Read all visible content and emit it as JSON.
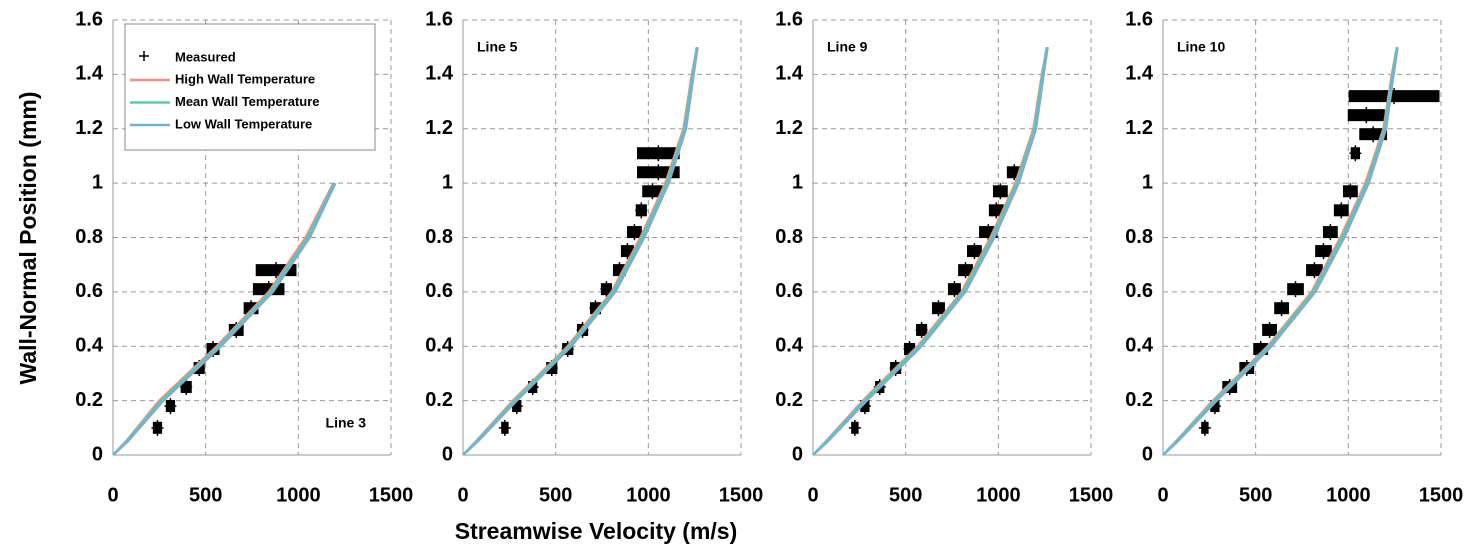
{
  "axis_titles": {
    "ylabel": "Wall-Normal Position (mm)",
    "xlabel": "Streamwise Velocity (m/s)"
  },
  "chart_data": [
    {
      "type": "line",
      "annotation": "Line 3",
      "annotation_corner": "bottom-right",
      "legend": "upper-left",
      "xlim": [
        0,
        1500
      ],
      "ylim": [
        0,
        1.6
      ],
      "xticks": [
        0,
        500,
        1000,
        1500
      ],
      "yticks": [
        0,
        0.2,
        0.4,
        0.6,
        0.8,
        1,
        1.2,
        1.4,
        1.6
      ],
      "grid": true,
      "measured": {
        "name": "Measured",
        "color": "#000000",
        "y": [
          0.1,
          0.18,
          0.25,
          0.32,
          0.39,
          0.46,
          0.54,
          0.61,
          0.68
        ],
        "x": [
          240,
          310,
          395,
          465,
          540,
          665,
          745,
          840,
          880
        ],
        "xerr": [
          25,
          25,
          30,
          30,
          35,
          40,
          40,
          85,
          110
        ]
      },
      "series": [
        {
          "name": "High Wall Temperature",
          "color": "#f08a84",
          "x": [
            0,
            70,
            250,
            560,
            840,
            1040,
            1190
          ],
          "y": [
            0,
            0.05,
            0.2,
            0.4,
            0.6,
            0.8,
            1
          ]
        },
        {
          "name": "Mean Wall Temperature",
          "color": "#5ccc9c",
          "x": [
            0,
            75,
            262,
            572,
            852,
            1052,
            1195
          ],
          "y": [
            0,
            0.05,
            0.2,
            0.4,
            0.6,
            0.8,
            1
          ]
        },
        {
          "name": "Low Wall Temperature",
          "color": "#6cb4dc",
          "x": [
            0,
            80,
            272,
            582,
            862,
            1062,
            1200
          ],
          "y": [
            0,
            0.05,
            0.2,
            0.4,
            0.6,
            0.8,
            1
          ]
        }
      ]
    },
    {
      "type": "line",
      "annotation": "Line 5",
      "annotation_corner": "top-left",
      "xlim": [
        0,
        1500
      ],
      "ylim": [
        0,
        1.6
      ],
      "xticks": [
        0,
        500,
        1000,
        1500
      ],
      "yticks": [
        0,
        0.2,
        0.4,
        0.6,
        0.8,
        1,
        1.2,
        1.4,
        1.6
      ],
      "grid": true,
      "measured": {
        "color": "#000000",
        "y": [
          0.1,
          0.18,
          0.25,
          0.32,
          0.39,
          0.46,
          0.54,
          0.61,
          0.68,
          0.75,
          0.82,
          0.9,
          0.97,
          1.04,
          1.11
        ],
        "x": [
          226,
          290,
          376,
          479,
          565,
          645,
          715,
          774,
          844,
          887,
          925,
          962,
          1022,
          1054,
          1054
        ],
        "xerr": [
          20,
          25,
          25,
          30,
          30,
          30,
          30,
          30,
          35,
          35,
          40,
          30,
          55,
          115,
          115
        ]
      },
      "series": [
        {
          "color": "#f08a84",
          "x": [
            0,
            70,
            270,
            565,
            802,
            958,
            1092,
            1190,
            1235,
            1262
          ],
          "y": [
            0,
            0.05,
            0.2,
            0.4,
            0.6,
            0.8,
            1,
            1.2,
            1.4,
            1.5
          ]
        },
        {
          "color": "#5ccc9c",
          "x": [
            0,
            75,
            280,
            575,
            812,
            968,
            1102,
            1197,
            1240,
            1264
          ],
          "y": [
            0,
            0.05,
            0.2,
            0.4,
            0.6,
            0.8,
            1,
            1.2,
            1.4,
            1.5
          ]
        },
        {
          "color": "#6cb4dc",
          "x": [
            0,
            80,
            290,
            585,
            822,
            978,
            1110,
            1203,
            1244,
            1266
          ],
          "y": [
            0,
            0.05,
            0.2,
            0.4,
            0.6,
            0.8,
            1,
            1.2,
            1.4,
            1.5
          ]
        }
      ]
    },
    {
      "type": "line",
      "annotation": "Line 9",
      "annotation_corner": "top-left",
      "xlim": [
        0,
        1500
      ],
      "ylim": [
        0,
        1.6
      ],
      "xticks": [
        0,
        500,
        1000,
        1500
      ],
      "yticks": [
        0,
        0.2,
        0.4,
        0.6,
        0.8,
        1,
        1.2,
        1.4,
        1.6
      ],
      "grid": true,
      "measured": {
        "color": "#000000",
        "y": [
          0.1,
          0.18,
          0.25,
          0.32,
          0.39,
          0.46,
          0.54,
          0.61,
          0.68,
          0.75,
          0.82,
          0.9,
          0.97,
          1.04
        ],
        "x": [
          226,
          280,
          360,
          446,
          521,
          586,
          677,
          763,
          823,
          871,
          946,
          989,
          1011,
          1086
        ],
        "xerr": [
          20,
          25,
          25,
          30,
          30,
          30,
          35,
          35,
          40,
          40,
          50,
          40,
          40,
          40
        ]
      },
      "series": [
        {
          "color": "#f08a84",
          "x": [
            0,
            70,
            270,
            565,
            802,
            958,
            1092,
            1190,
            1235,
            1262
          ],
          "y": [
            0,
            0.05,
            0.2,
            0.4,
            0.6,
            0.8,
            1,
            1.2,
            1.4,
            1.5
          ]
        },
        {
          "color": "#5ccc9c",
          "x": [
            0,
            75,
            280,
            575,
            812,
            968,
            1102,
            1197,
            1240,
            1264
          ],
          "y": [
            0,
            0.05,
            0.2,
            0.4,
            0.6,
            0.8,
            1,
            1.2,
            1.4,
            1.5
          ]
        },
        {
          "color": "#6cb4dc",
          "x": [
            0,
            80,
            290,
            585,
            822,
            978,
            1110,
            1203,
            1244,
            1266
          ],
          "y": [
            0,
            0.05,
            0.2,
            0.4,
            0.6,
            0.8,
            1,
            1.2,
            1.4,
            1.5
          ]
        }
      ]
    },
    {
      "type": "line",
      "annotation": "Line 10",
      "annotation_corner": "top-left",
      "xlim": [
        0,
        1500
      ],
      "ylim": [
        0,
        1.6
      ],
      "xticks": [
        0,
        500,
        1000,
        1500
      ],
      "yticks": [
        0,
        0.2,
        0.4,
        0.6,
        0.8,
        1,
        1.2,
        1.4,
        1.6
      ],
      "grid": true,
      "measured": {
        "color": "#000000",
        "y": [
          0.1,
          0.18,
          0.25,
          0.32,
          0.39,
          0.46,
          0.54,
          0.61,
          0.68,
          0.75,
          0.82,
          0.9,
          0.97,
          1.11,
          1.18,
          1.25,
          1.32
        ],
        "x": [
          226,
          280,
          360,
          452,
          527,
          575,
          640,
          715,
          817,
          866,
          903,
          962,
          1011,
          1038,
          1134,
          1097,
          1247
        ],
        "xerr": [
          20,
          25,
          40,
          40,
          40,
          40,
          40,
          45,
          45,
          45,
          40,
          40,
          40,
          25,
          75,
          100,
          245
        ]
      },
      "series": [
        {
          "color": "#f08a84",
          "x": [
            0,
            70,
            270,
            565,
            802,
            958,
            1092,
            1190,
            1235,
            1262
          ],
          "y": [
            0,
            0.05,
            0.2,
            0.4,
            0.6,
            0.8,
            1,
            1.2,
            1.4,
            1.5
          ]
        },
        {
          "color": "#5ccc9c",
          "x": [
            0,
            75,
            280,
            575,
            812,
            968,
            1102,
            1197,
            1240,
            1264
          ],
          "y": [
            0,
            0.05,
            0.2,
            0.4,
            0.6,
            0.8,
            1,
            1.2,
            1.4,
            1.5
          ]
        },
        {
          "color": "#6cb4dc",
          "x": [
            0,
            80,
            290,
            585,
            822,
            978,
            1110,
            1203,
            1244,
            1266
          ],
          "y": [
            0,
            0.05,
            0.2,
            0.4,
            0.6,
            0.8,
            1,
            1.2,
            1.4,
            1.5
          ]
        }
      ]
    }
  ]
}
